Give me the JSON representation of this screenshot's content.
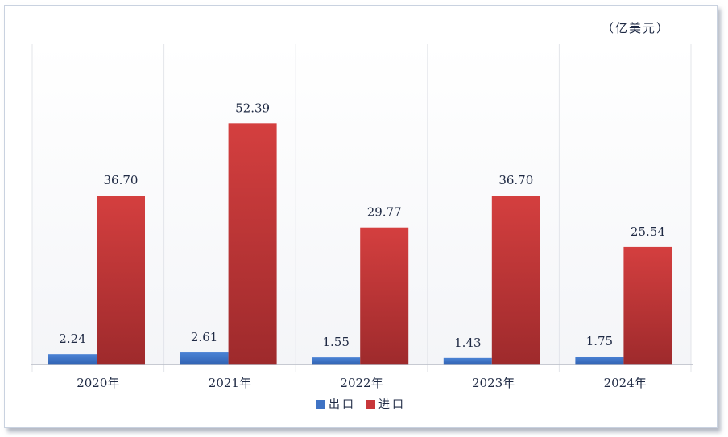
{
  "chart_data": {
    "type": "bar",
    "unit": "（亿美元）",
    "categories": [
      "2020年",
      "2021年",
      "2022年",
      "2023年",
      "2024年"
    ],
    "series": [
      {
        "name": "出口",
        "values": [
          2.24,
          2.61,
          1.55,
          1.43,
          1.75
        ],
        "color": "#3f73c4"
      },
      {
        "name": "进口",
        "values": [
          36.7,
          52.39,
          29.77,
          36.7,
          25.54
        ],
        "color": "#c8373a"
      }
    ],
    "value_labels": [
      [
        "2.24",
        "2.61",
        "1.55",
        "1.43",
        "1.75"
      ],
      [
        "36.70",
        "52.39",
        "29.77",
        "36.70",
        "25.54"
      ]
    ],
    "ylim": [
      0,
      60
    ],
    "grid": false,
    "legend_position": "bottom"
  }
}
